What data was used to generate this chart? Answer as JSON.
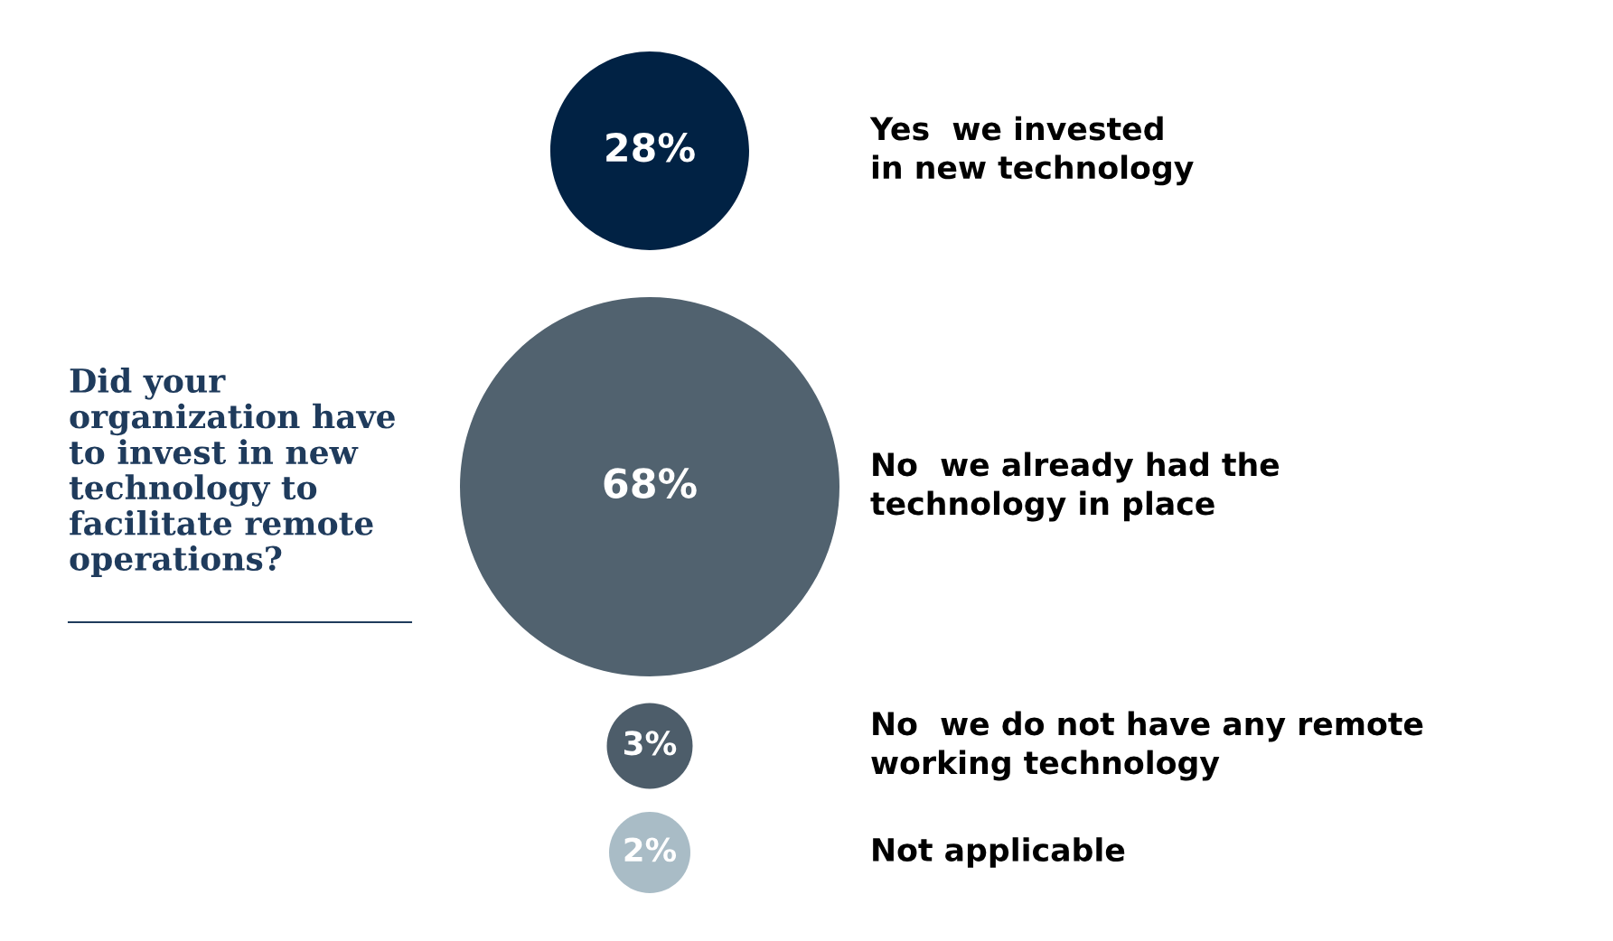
{
  "chart_data": {
    "type": "other",
    "title": "Did your\norganization have\nto invest in new\ntechnology to\nfacilitate remote\noperations?",
    "categories": [
      "Yes  we invested\nin new technology",
      "No  we already had the\ntechnology in place",
      "No  we do not have any remote\nworking technology",
      "Not applicable"
    ],
    "values": [
      28,
      68,
      3,
      2
    ],
    "colors": [
      "#012244",
      "#51626f",
      "#4d5d6a",
      "#a9bcc6"
    ],
    "value_labels": [
      "28%",
      "68%",
      "3%",
      "2%"
    ]
  }
}
